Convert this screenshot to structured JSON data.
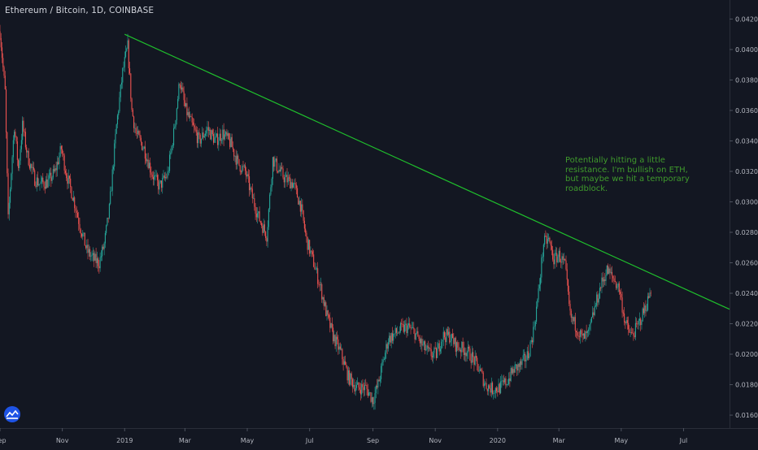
{
  "header": {
    "title": "Ethereum / Bitcoin, 1D, COINBASE"
  },
  "annotation": {
    "text": "Potentially hitting a little resistance. I'm bullish on ETH, but maybe we hit a temporary roadblock."
  },
  "colors": {
    "background": "#131722",
    "up": "#26a69a",
    "down": "#ef5350",
    "trendline": "#1fbf2c",
    "annotation": "#3f9a2c",
    "axis_text": "#b2b5be"
  },
  "chart_data": {
    "type": "candlestick",
    "title": "Ethereum / Bitcoin, 1D, COINBASE",
    "xlabel": "",
    "ylabel": "",
    "ylim": [
      0.01515,
      0.04325
    ],
    "xlim": [
      "2018-09-01",
      "2020-08-15"
    ],
    "grid": false,
    "x_ticks": [
      {
        "date": "2018-09-01",
        "label": "Sep"
      },
      {
        "date": "2018-11-01",
        "label": "Nov"
      },
      {
        "date": "2019-01-01",
        "label": "2019"
      },
      {
        "date": "2019-03-01",
        "label": "Mar"
      },
      {
        "date": "2019-05-01",
        "label": "May"
      },
      {
        "date": "2019-07-01",
        "label": "Jul"
      },
      {
        "date": "2019-09-01",
        "label": "Sep"
      },
      {
        "date": "2019-11-01",
        "label": "Nov"
      },
      {
        "date": "2020-01-01",
        "label": "2020"
      },
      {
        "date": "2020-03-01",
        "label": "Mar"
      },
      {
        "date": "2020-05-01",
        "label": "May"
      },
      {
        "date": "2020-07-01",
        "label": "Jul"
      }
    ],
    "y_ticks": [
      "0.04200",
      "0.04000",
      "0.03800",
      "0.03600",
      "0.03400",
      "0.03200",
      "0.03000",
      "0.02800",
      "0.02600",
      "0.02400",
      "0.02200",
      "0.02000",
      "0.01800",
      "0.01600"
    ],
    "close_path": [
      [
        "2018-09-01",
        0.0412
      ],
      [
        "2018-09-06",
        0.0372
      ],
      [
        "2018-09-09",
        0.0288
      ],
      [
        "2018-09-12",
        0.032
      ],
      [
        "2018-09-15",
        0.035
      ],
      [
        "2018-09-19",
        0.0322
      ],
      [
        "2018-09-23",
        0.035
      ],
      [
        "2018-09-28",
        0.033
      ],
      [
        "2018-10-05",
        0.0315
      ],
      [
        "2018-10-10",
        0.0312
      ],
      [
        "2018-10-18",
        0.0313
      ],
      [
        "2018-10-25",
        0.032
      ],
      [
        "2018-10-31",
        0.0335
      ],
      [
        "2018-11-05",
        0.0318
      ],
      [
        "2018-11-12",
        0.0302
      ],
      [
        "2018-11-18",
        0.0285
      ],
      [
        "2018-11-25",
        0.0268
      ],
      [
        "2018-12-02",
        0.0262
      ],
      [
        "2018-12-07",
        0.026
      ],
      [
        "2018-12-12",
        0.0272
      ],
      [
        "2018-12-17",
        0.0295
      ],
      [
        "2018-12-24",
        0.035
      ],
      [
        "2018-12-30",
        0.0385
      ],
      [
        "2019-01-04",
        0.0402
      ],
      [
        "2019-01-08",
        0.036
      ],
      [
        "2019-01-12",
        0.0345
      ],
      [
        "2019-01-20",
        0.0335
      ],
      [
        "2019-01-28",
        0.0318
      ],
      [
        "2019-02-04",
        0.031
      ],
      [
        "2019-02-12",
        0.0318
      ],
      [
        "2019-02-18",
        0.0345
      ],
      [
        "2019-02-24",
        0.038
      ],
      [
        "2019-03-01",
        0.0362
      ],
      [
        "2019-03-08",
        0.035
      ],
      [
        "2019-03-15",
        0.034
      ],
      [
        "2019-03-23",
        0.0348
      ],
      [
        "2019-03-31",
        0.034
      ],
      [
        "2019-04-07",
        0.0345
      ],
      [
        "2019-04-15",
        0.0338
      ],
      [
        "2019-04-22",
        0.0325
      ],
      [
        "2019-04-29",
        0.032
      ],
      [
        "2019-05-05",
        0.0305
      ],
      [
        "2019-05-12",
        0.029
      ],
      [
        "2019-05-20",
        0.0278
      ],
      [
        "2019-05-26",
        0.0328
      ],
      [
        "2019-05-31",
        0.0322
      ],
      [
        "2019-06-07",
        0.0315
      ],
      [
        "2019-06-15",
        0.0312
      ],
      [
        "2019-06-22",
        0.0298
      ],
      [
        "2019-06-28",
        0.0275
      ],
      [
        "2019-07-05",
        0.026
      ],
      [
        "2019-07-12",
        0.0243
      ],
      [
        "2019-07-18",
        0.0225
      ],
      [
        "2019-07-24",
        0.0212
      ],
      [
        "2019-08-01",
        0.02
      ],
      [
        "2019-08-08",
        0.0185
      ],
      [
        "2019-08-16",
        0.0178
      ],
      [
        "2019-08-25",
        0.0178
      ],
      [
        "2019-09-01",
        0.017
      ],
      [
        "2019-09-06",
        0.018
      ],
      [
        "2019-09-11",
        0.0195
      ],
      [
        "2019-09-16",
        0.021
      ],
      [
        "2019-09-22",
        0.0213
      ],
      [
        "2019-09-28",
        0.0216
      ],
      [
        "2019-10-05",
        0.0218
      ],
      [
        "2019-10-12",
        0.0214
      ],
      [
        "2019-10-20",
        0.0205
      ],
      [
        "2019-10-27",
        0.02
      ],
      [
        "2019-11-02",
        0.02
      ],
      [
        "2019-11-08",
        0.0212
      ],
      [
        "2019-11-15",
        0.0212
      ],
      [
        "2019-11-22",
        0.0205
      ],
      [
        "2019-11-30",
        0.0203
      ],
      [
        "2019-12-07",
        0.0198
      ],
      [
        "2019-12-14",
        0.019
      ],
      [
        "2019-12-20",
        0.018
      ],
      [
        "2019-12-27",
        0.0177
      ],
      [
        "2020-01-03",
        0.0178
      ],
      [
        "2020-01-10",
        0.0182
      ],
      [
        "2020-01-17",
        0.019
      ],
      [
        "2020-01-24",
        0.0193
      ],
      [
        "2020-01-31",
        0.02
      ],
      [
        "2020-02-05",
        0.0215
      ],
      [
        "2020-02-10",
        0.024
      ],
      [
        "2020-02-15",
        0.0273
      ],
      [
        "2020-02-20",
        0.0275
      ],
      [
        "2020-02-25",
        0.0262
      ],
      [
        "2020-03-01",
        0.0265
      ],
      [
        "2020-03-07",
        0.0258
      ],
      [
        "2020-03-12",
        0.0225
      ],
      [
        "2020-03-18",
        0.0218
      ],
      [
        "2020-03-24",
        0.021
      ],
      [
        "2020-03-30",
        0.0213
      ],
      [
        "2020-04-05",
        0.023
      ],
      [
        "2020-04-11",
        0.0245
      ],
      [
        "2020-04-17",
        0.0255
      ],
      [
        "2020-04-23",
        0.025
      ],
      [
        "2020-04-29",
        0.0243
      ],
      [
        "2020-05-05",
        0.022
      ],
      [
        "2020-05-11",
        0.0212
      ],
      [
        "2020-05-17",
        0.0218
      ],
      [
        "2020-05-23",
        0.0228
      ],
      [
        "2020-05-27",
        0.0235
      ],
      [
        "2020-05-30",
        0.0243
      ]
    ],
    "trendline": {
      "start": [
        "2019-01-01",
        0.041
      ],
      "end": [
        "2020-08-15",
        0.02295
      ]
    }
  }
}
